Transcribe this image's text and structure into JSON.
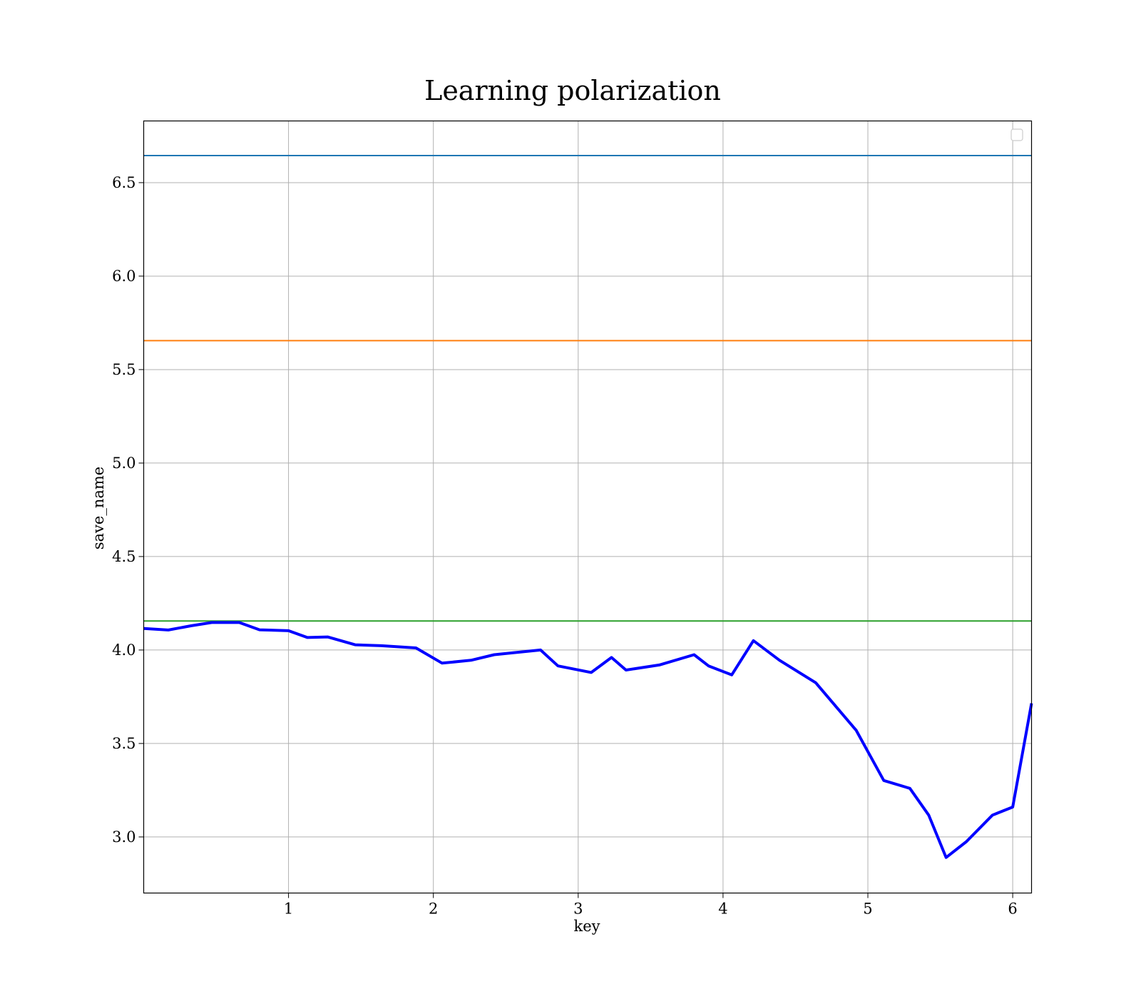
{
  "chart_data": {
    "type": "line",
    "title": "Learning polarization",
    "xlabel": "key",
    "ylabel": "save_name",
    "xlim": [
      0.0,
      6.13
    ],
    "ylim": [
      2.7,
      6.83
    ],
    "xticks": [
      "1",
      "2",
      "3",
      "4",
      "5",
      "6"
    ],
    "yticks": [
      "3.0",
      "3.5",
      "4.0",
      "4.5",
      "5.0",
      "5.5",
      "6.0",
      "6.5"
    ],
    "grid": true,
    "legend": "top-right (empty)",
    "hlines": [
      {
        "y": 6.645,
        "color": "#1f77b4"
      },
      {
        "y": 5.655,
        "color": "#ff7f0e"
      },
      {
        "y": 4.155,
        "color": "#2ca02c"
      }
    ],
    "series": [
      {
        "color": "#0000ff",
        "x": [
          0.0,
          0.17,
          0.33,
          0.47,
          0.66,
          0.8,
          1.0,
          1.13,
          1.27,
          1.46,
          1.64,
          1.88,
          2.06,
          2.26,
          2.42,
          2.74,
          2.86,
          3.09,
          3.23,
          3.33,
          3.56,
          3.8,
          3.9,
          4.06,
          4.21,
          4.39,
          4.64,
          4.92,
          5.11,
          5.29,
          5.42,
          5.54,
          5.68,
          5.86,
          6.0,
          6.13
        ],
        "y": [
          4.115,
          4.107,
          4.13,
          4.147,
          4.147,
          4.108,
          4.103,
          4.067,
          4.07,
          4.028,
          4.023,
          4.011,
          3.93,
          3.945,
          3.975,
          4.0,
          3.915,
          3.88,
          3.96,
          3.893,
          3.92,
          3.975,
          3.915,
          3.867,
          4.05,
          3.945,
          3.825,
          3.57,
          3.302,
          3.26,
          3.117,
          2.89,
          2.975,
          3.117,
          3.16,
          3.715
        ]
      }
    ]
  }
}
